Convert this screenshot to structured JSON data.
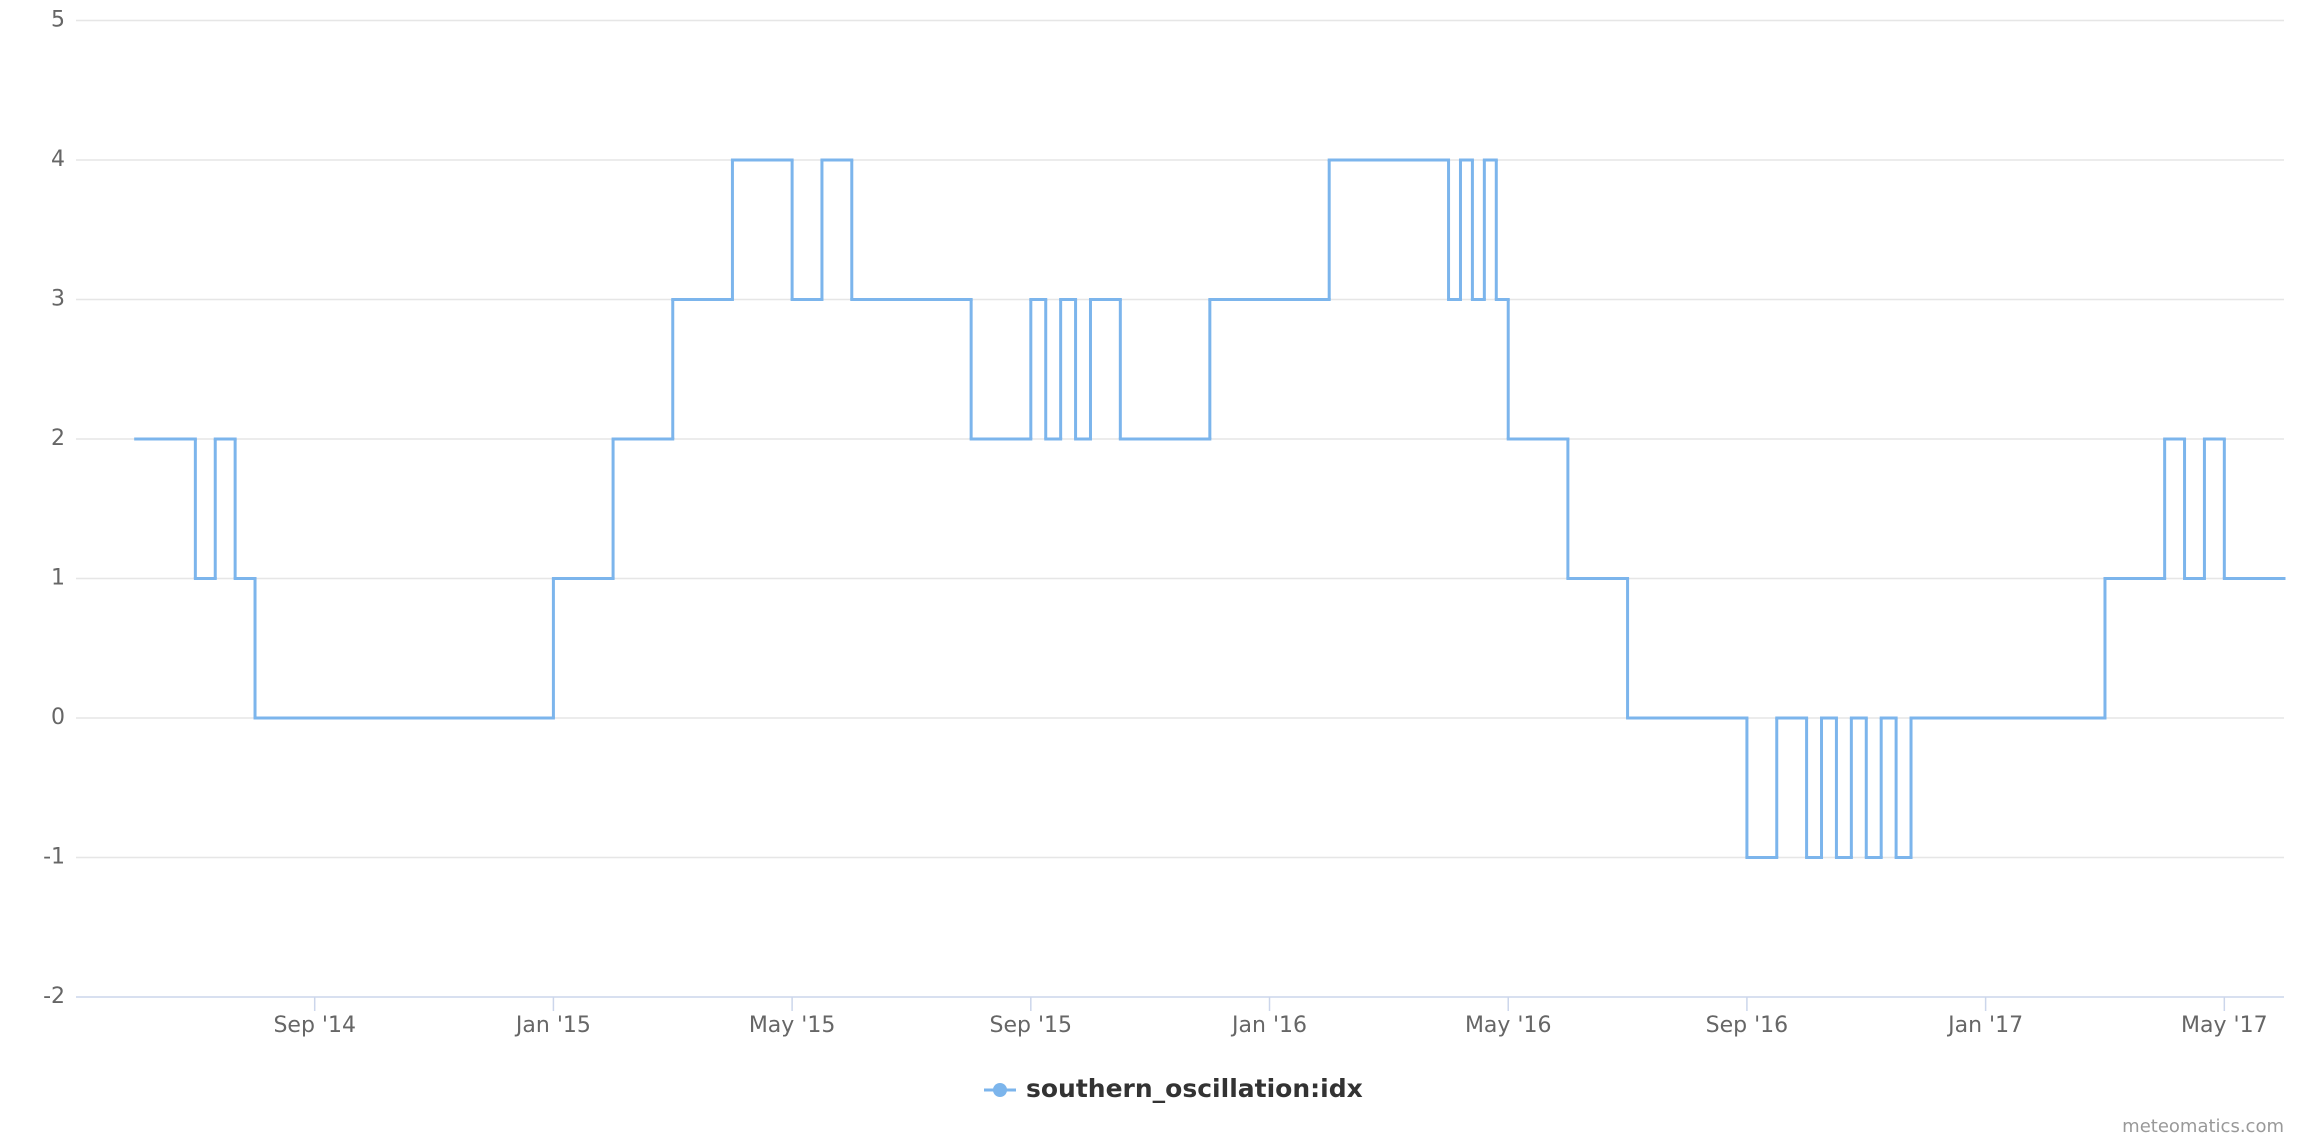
{
  "chart_data": {
    "type": "step-line",
    "x": [
      "2014-06",
      "2014-07",
      "2014-07",
      "2014-07",
      "2014-08",
      "2015-01",
      "2015-02",
      "2015-03",
      "2015-04",
      "2015-05",
      "2015-05",
      "2015-06",
      "2015-08",
      "2015-09",
      "2015-09",
      "2015-09",
      "2015-09",
      "2015-10",
      "2015-10",
      "2015-12",
      "2016-02",
      "2016-04",
      "2016-04",
      "2016-04",
      "2016-04",
      "2016-04",
      "2016-05",
      "2016-06",
      "2016-07",
      "2016-09",
      "2016-09",
      "2016-10",
      "2016-10",
      "2016-10",
      "2016-10",
      "2016-11",
      "2016-11",
      "2016-11",
      "2016-11",
      "2017-03",
      "2017-04",
      "2017-04",
      "2017-04",
      "2017-05"
    ],
    "series": [
      {
        "name": "southern_oscillation:idx",
        "color": "#7cb5ec",
        "values": [
          2,
          1,
          2,
          1,
          0,
          1,
          2,
          3,
          4,
          3,
          4,
          3,
          2,
          3,
          2,
          3,
          2,
          3,
          2,
          3,
          4,
          3,
          4,
          3,
          4,
          3,
          2,
          1,
          0,
          -1,
          0,
          -1,
          0,
          -1,
          0,
          -1,
          0,
          -1,
          0,
          1,
          2,
          1,
          2,
          1
        ]
      }
    ],
    "xlim": [
      "2014-05",
      "2017-06"
    ],
    "xticks": [
      {
        "value": "2014-09",
        "label": "Sep '14"
      },
      {
        "value": "2015-01",
        "label": "Jan '15"
      },
      {
        "value": "2015-05",
        "label": "May '15"
      },
      {
        "value": "2015-09",
        "label": "Sep '15"
      },
      {
        "value": "2016-01",
        "label": "Jan '16"
      },
      {
        "value": "2016-05",
        "label": "May '16"
      },
      {
        "value": "2016-09",
        "label": "Sep '16"
      },
      {
        "value": "2017-01",
        "label": "Jan '17"
      },
      {
        "value": "2017-05",
        "label": "May '17"
      }
    ],
    "ylim": [
      -2,
      5
    ],
    "yticks": [
      -2,
      -1,
      0,
      1,
      2,
      3,
      4,
      5
    ],
    "grid": true,
    "legend": "bottom",
    "credits": "meteomatics.com"
  }
}
